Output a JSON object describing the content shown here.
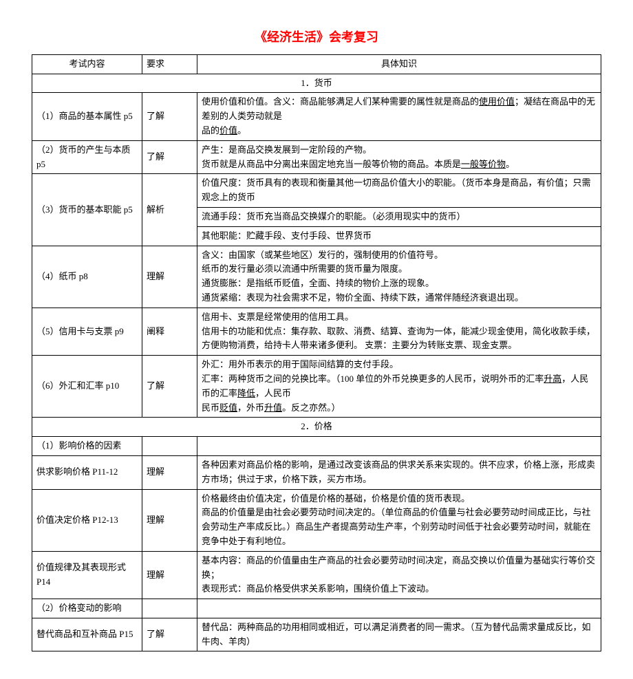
{
  "title": "《经济生活》会考复习",
  "headers": {
    "col1": "考试内容",
    "col2": "要求",
    "col3": "具体知识"
  },
  "section1": "1．货币",
  "r1": {
    "c1": "（1）商品的基本属性 p5",
    "c2": "了解",
    "a": "使用价值和价值。含义：商品能够满足人们某种需要的属性就是商品的",
    "b": "使用价值",
    "c": "；凝结在商品中的无差别的人类劳动就是",
    "d": "品的",
    "e": "价值",
    "f": "。"
  },
  "r2": {
    "c1": "（2）货币的产生与本质p5",
    "c2": "了解",
    "a": "产生：是商品交换发展到一定阶段的产物。",
    "b": "货币就是从商品中分离出来固定地充当一般等价物的商品。本质是",
    "c": "一般等价物",
    "d": "。"
  },
  "r3": {
    "c1": "（3）货币的基本职能 p5",
    "c2": "解析",
    "a": "价值尺度：货币具有的表现和衡量其他一切商品价值大小的职能。（货币本身是商品，有价值；只需观念上的货币",
    "b": "流通手段：货币充当商品交换媒介的职能。（必须用现实中的货币）",
    "c": "其他职能：贮藏手段、支付手段、世界货币"
  },
  "r4": {
    "c1": "（4）纸币 p8",
    "c2": "理解",
    "a": "含义：由国家（或某些地区）发行的，强制使用的价值符号。",
    "b": "纸币的发行量必须以流通中所需要的货币量为限度。",
    "c": "通货膨胀：是指纸币贬值，全面、持续的物价上涨的现象。",
    "d": "通货紧缩：表现为社会需求不足，物价全面、持续下跌，通常伴随经济衰退出现。"
  },
  "r5": {
    "c1": "（5）信用卡与支票 p9",
    "c2": "阐释",
    "a": "信用卡、支票是经常使用的信用工具。",
    "b": "信用卡的功能和优点：集存款、取款、消费、结算、查询为一体，能减少现金使用，简化收款手续，方便购物消费，给持卡人带来诸多便利。    支票：主要分为转账支票、现金支票。"
  },
  "r6": {
    "c1": "（6）外汇和汇率 p10",
    "c2": "了解",
    "a": "外汇：用外币表示的用于国际间结算的支付手段。",
    "b": "汇率：两种货币之间的兑换比率。（100 单位的外币兑换更多的人民币，说明外币的汇率",
    "c": "升高",
    "d": "，人民币的汇率",
    "e": "降低",
    "f": "，人民币",
    "g": "贬值",
    "h": "，外币",
    "i": "升值",
    "j": "。反之亦然。）"
  },
  "section2": "2．价格",
  "r7": {
    "c1": "（1）影响价格的因素"
  },
  "r8": {
    "c1": "供求影响价格 P11-12",
    "c2": "理解",
    "a": "各种因素对商品价格的影响，是通过改变该商品的供求关系来实现的。供不应求，价格上涨，形成卖方市场；供过于求，价格下跌，买方市场。"
  },
  "r9": {
    "c1": "价值决定价格 P12-13",
    "c2": "理解",
    "a": "价格最终由价值决定，价值是价格的基础，价格是价值的货币表现。",
    "b": "商品的价值量是由社会必要劳动时间决定的。（单位商品的价值量与社会必要劳动时间成正比，与社会劳动生产率成反比。）商品生产者提高劳动生产率，个别劳动时间低于社会必要劳动时间，就能在竞争中处于有利地位。"
  },
  "r10": {
    "c1": "价值规律及其表现形式 P14",
    "c2": "理解",
    "a": "基本内容：商品的价值量由生产商品的社会必要劳动时间决定，商品交换以价值量为基础实行等价交换；",
    "b": "表现形式：商品价格受供求关系影响，围绕价值上下波动。"
  },
  "r11": {
    "c1": "（2）价格变动的影响"
  },
  "r12": {
    "c1": "替代商品和互补商品 P15",
    "c2": "了解",
    "a": "替代品：两种商品的功用相同或相近，可以满足消费者的同一需求。（互为替代品需求量成反比，如牛肉、羊肉）"
  }
}
